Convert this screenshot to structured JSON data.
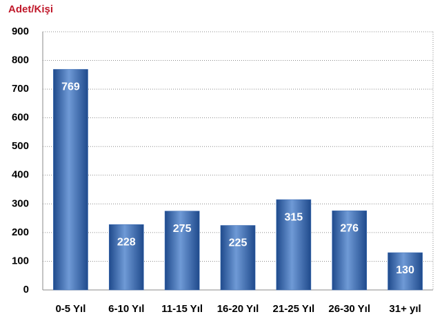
{
  "chart_data": {
    "type": "bar",
    "title": "Adet/Kişi",
    "categories": [
      "0-5 Yıl",
      "6-10 Yıl",
      "11-15 Yıl",
      "16-20 Yıl",
      "21-25 Yıl",
      "26-30 Yıl",
      "31+ yıl"
    ],
    "values": [
      769,
      228,
      275,
      225,
      315,
      276,
      130
    ],
    "color": "#3a6cb5",
    "ylim": [
      0,
      900
    ],
    "yticks": [
      0,
      100,
      200,
      300,
      400,
      500,
      600,
      700,
      800,
      900
    ],
    "grid": true
  }
}
